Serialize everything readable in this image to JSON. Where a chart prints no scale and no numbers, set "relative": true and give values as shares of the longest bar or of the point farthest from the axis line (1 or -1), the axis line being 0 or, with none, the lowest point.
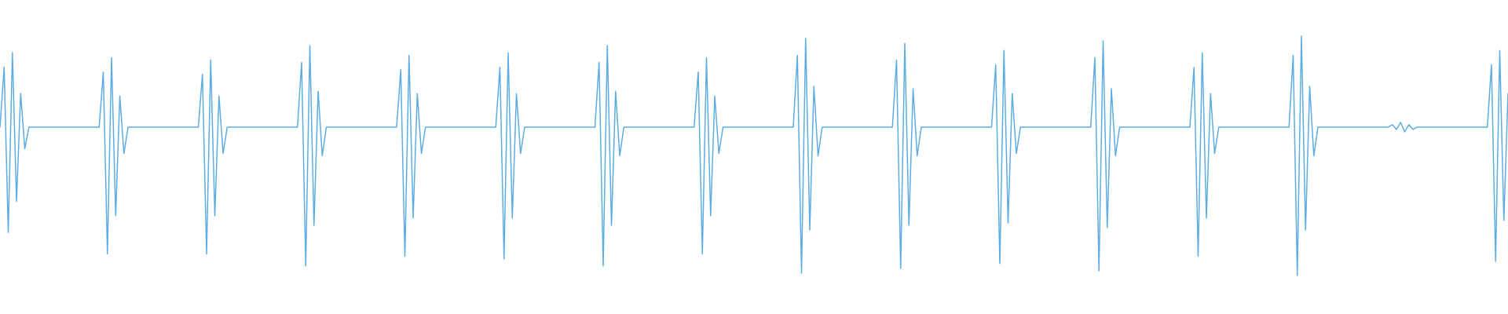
{
  "chart_data": {
    "type": "line",
    "relative": true,
    "color": "#5dade2",
    "categories": [
      null,
      null,
      null,
      null,
      null,
      null,
      null,
      null,
      null,
      null,
      null,
      null,
      null,
      null,
      null,
      null,
      null,
      null,
      null,
      null,
      null,
      null,
      null,
      null,
      null,
      null,
      null,
      null,
      null,
      null,
      null,
      null,
      null,
      null,
      null,
      null,
      null,
      null,
      null,
      null,
      null,
      null,
      null,
      null,
      null,
      null,
      null,
      null,
      null,
      null,
      null,
      null,
      null,
      null,
      null,
      null,
      null,
      null,
      null,
      null,
      null,
      null,
      null,
      null,
      null,
      null,
      null,
      null,
      null,
      null,
      null,
      null,
      null,
      null,
      null,
      null,
      null,
      null,
      null,
      null,
      null,
      null,
      null,
      null,
      null,
      null,
      null,
      null,
      null,
      null,
      null,
      null,
      null,
      null,
      null,
      null,
      null,
      null,
      null,
      null,
      null,
      null,
      null,
      null,
      null,
      null,
      null,
      null,
      null,
      null,
      null,
      null,
      null,
      null,
      null,
      null,
      null,
      null,
      null,
      null,
      null,
      null,
      null,
      null,
      null,
      null,
      null,
      null,
      null,
      null,
      null,
      null,
      null,
      null,
      null,
      null,
      null,
      null,
      null,
      null,
      null,
      null,
      null,
      null,
      null,
      null,
      null,
      null,
      null,
      null,
      null,
      null,
      null,
      null,
      null,
      null,
      null,
      null,
      null,
      null,
      null,
      null,
      null,
      null,
      null,
      null,
      null,
      null,
      null,
      null,
      null,
      null,
      null,
      null,
      null,
      null,
      null,
      null,
      null,
      null,
      null,
      null,
      null,
      null,
      null,
      null,
      null,
      null,
      null,
      null,
      null,
      null,
      null,
      null,
      null,
      null,
      null,
      null,
      null,
      null,
      null,
      null,
      null,
      null,
      null,
      null,
      null,
      null,
      null,
      null,
      null,
      null,
      null,
      null,
      null,
      null,
      null,
      null,
      null,
      null,
      null,
      null,
      null,
      null,
      null,
      null,
      null,
      null,
      null,
      null,
      null,
      null,
      null,
      null,
      null,
      null,
      null,
      null,
      null,
      null,
      null,
      null,
      null,
      null,
      null,
      null,
      null,
      null,
      null,
      null,
      null,
      null,
      null,
      null,
      null,
      null,
      null,
      null,
      null,
      null,
      null,
      null,
      null,
      null,
      null,
      null,
      null,
      null,
      null,
      null,
      null,
      null,
      null,
      null,
      null,
      null,
      null,
      null,
      null,
      null,
      null,
      null,
      null,
      null,
      null,
      null,
      null,
      null,
      null,
      null,
      null,
      null,
      null,
      null,
      null,
      null,
      null,
      null,
      null,
      null,
      null,
      null,
      null,
      null,
      null,
      null,
      null,
      null,
      null,
      null,
      null,
      null,
      null,
      null,
      null,
      null,
      null,
      null,
      null,
      null,
      null,
      null,
      null,
      null,
      null,
      null,
      null,
      null,
      null,
      null,
      null,
      null,
      null,
      null,
      null,
      null,
      null,
      null,
      null,
      null,
      null,
      null,
      null,
      null,
      null,
      null,
      null,
      null,
      null,
      null,
      null,
      null,
      null,
      null,
      null,
      null,
      null,
      null,
      null,
      null,
      null,
      null,
      null,
      null,
      null,
      null
    ],
    "values": [
      0.62,
      0.87,
      0.18,
      0.93,
      0.31,
      0.76,
      0.53,
      0.62,
      0.62,
      0.62,
      0.62,
      0.62,
      0.62,
      0.62,
      0.62,
      0.62,
      0.62,
      0.62,
      0.62,
      0.62,
      0.62,
      0.62,
      0.62,
      0.62,
      0.62,
      0.85,
      0.09,
      0.91,
      0.25,
      0.75,
      0.51,
      0.62,
      0.62,
      0.62,
      0.62,
      0.62,
      0.62,
      0.62,
      0.62,
      0.62,
      0.62,
      0.62,
      0.62,
      0.62,
      0.62,
      0.62,
      0.62,
      0.62,
      0.62,
      0.84,
      0.09,
      0.9,
      0.25,
      0.75,
      0.51,
      0.62,
      0.62,
      0.62,
      0.62,
      0.62,
      0.62,
      0.62,
      0.62,
      0.62,
      0.62,
      0.62,
      0.62,
      0.62,
      0.62,
      0.62,
      0.62,
      0.62,
      0.62,
      0.89,
      0.04,
      0.96,
      0.21,
      0.77,
      0.5,
      0.62,
      0.62,
      0.62,
      0.62,
      0.62,
      0.62,
      0.62,
      0.62,
      0.62,
      0.62,
      0.62,
      0.62,
      0.62,
      0.62,
      0.62,
      0.62,
      0.62,
      0.62,
      0.86,
      0.08,
      0.92,
      0.24,
      0.76,
      0.51,
      0.62,
      0.62,
      0.62,
      0.62,
      0.62,
      0.62,
      0.62,
      0.62,
      0.62,
      0.62,
      0.62,
      0.62,
      0.62,
      0.62,
      0.62,
      0.62,
      0.62,
      0.62,
      0.87,
      0.07,
      0.93,
      0.24,
      0.76,
      0.51,
      0.62,
      0.62,
      0.62,
      0.62,
      0.62,
      0.62,
      0.62,
      0.62,
      0.62,
      0.62,
      0.62,
      0.62,
      0.62,
      0.62,
      0.62,
      0.62,
      0.62,
      0.62,
      0.89,
      0.04,
      0.96,
      0.21,
      0.77,
      0.5,
      0.62,
      0.62,
      0.62,
      0.62,
      0.62,
      0.62,
      0.62,
      0.62,
      0.62,
      0.62,
      0.62,
      0.62,
      0.62,
      0.62,
      0.62,
      0.62,
      0.62,
      0.62,
      0.85,
      0.09,
      0.91,
      0.25,
      0.75,
      0.51,
      0.62,
      0.62,
      0.62,
      0.62,
      0.62,
      0.62,
      0.62,
      0.62,
      0.62,
      0.62,
      0.62,
      0.62,
      0.62,
      0.62,
      0.62,
      0.62,
      0.62,
      0.62,
      0.92,
      0.01,
      0.99,
      0.19,
      0.79,
      0.5,
      0.62,
      0.62,
      0.62,
      0.62,
      0.62,
      0.62,
      0.62,
      0.62,
      0.62,
      0.62,
      0.62,
      0.62,
      0.62,
      0.62,
      0.62,
      0.62,
      0.62,
      0.62,
      0.9,
      0.03,
      0.97,
      0.21,
      0.78,
      0.5,
      0.62,
      0.62,
      0.62,
      0.62,
      0.62,
      0.62,
      0.62,
      0.62,
      0.62,
      0.62,
      0.62,
      0.62,
      0.62,
      0.62,
      0.62,
      0.62,
      0.62,
      0.62,
      0.88,
      0.05,
      0.94,
      0.22,
      0.76,
      0.51,
      0.62,
      0.62,
      0.62,
      0.62,
      0.62,
      0.62,
      0.62,
      0.62,
      0.62,
      0.62,
      0.62,
      0.62,
      0.62,
      0.62,
      0.62,
      0.62,
      0.62,
      0.62,
      0.91,
      0.02,
      0.98,
      0.2,
      0.78,
      0.5,
      0.62,
      0.62,
      0.62,
      0.62,
      0.62,
      0.62,
      0.62,
      0.62,
      0.62,
      0.62,
      0.62,
      0.62,
      0.62,
      0.62,
      0.62,
      0.62,
      0.62,
      0.62,
      0.87,
      0.08,
      0.93,
      0.24,
      0.76,
      0.51,
      0.62,
      0.62,
      0.62,
      0.62,
      0.62,
      0.62,
      0.62,
      0.62,
      0.62,
      0.62,
      0.62,
      0.62,
      0.62,
      0.62,
      0.62,
      0.62,
      0.62,
      0.62,
      0.92,
      0,
      1,
      0.19,
      0.79,
      0.5,
      0.62,
      0.62,
      0.62,
      0.62,
      0.62,
      0.62,
      0.62,
      0.62,
      0.62,
      0.62,
      0.62,
      0.62,
      0.62,
      0.62,
      0.62,
      0.62,
      0.62,
      0.62,
      0.63,
      0.61,
      0.64,
      0.6,
      0.63,
      0.61,
      0.62,
      0.62,
      0.62,
      0.62,
      0.62,
      0.62,
      0.62,
      0.62,
      0.62,
      0.62,
      0.62,
      0.62,
      0.62,
      0.62,
      0.62,
      0.62,
      0.62,
      0.62,
      0.88,
      0.06,
      0.94,
      0.23,
      0.76
    ]
  }
}
